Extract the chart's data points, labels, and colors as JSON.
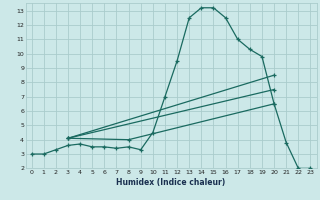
{
  "xlabel": "Humidex (Indice chaleur)",
  "bg_color": "#cce8e8",
  "grid_color": "#aacccc",
  "line_color": "#1a6a60",
  "xlim": [
    -0.5,
    23.5
  ],
  "ylim": [
    2,
    13.5
  ],
  "xticks": [
    0,
    1,
    2,
    3,
    4,
    5,
    6,
    7,
    8,
    9,
    10,
    11,
    12,
    13,
    14,
    15,
    16,
    17,
    18,
    19,
    20,
    21,
    22,
    23
  ],
  "yticks": [
    2,
    3,
    4,
    5,
    6,
    7,
    8,
    9,
    10,
    11,
    12,
    13
  ],
  "lines": [
    {
      "x": [
        0,
        1,
        2,
        3,
        4,
        5,
        6,
        7,
        8,
        9,
        10,
        11,
        12,
        13,
        14,
        15,
        16,
        17,
        18,
        19,
        20,
        21,
        22,
        23
      ],
      "y": [
        3,
        3,
        3.3,
        3.6,
        3.7,
        3.5,
        3.5,
        3.4,
        3.5,
        3.3,
        4.5,
        7.0,
        9.5,
        12.5,
        13.2,
        13.2,
        12.5,
        11.0,
        10.3,
        9.8,
        6.5,
        3.8,
        2.0,
        2.0
      ]
    },
    {
      "x": [
        3,
        20
      ],
      "y": [
        4.1,
        8.5
      ]
    },
    {
      "x": [
        3,
        20
      ],
      "y": [
        4.1,
        7.5
      ]
    },
    {
      "x": [
        3,
        8,
        20
      ],
      "y": [
        4.1,
        4.0,
        6.5
      ]
    }
  ]
}
